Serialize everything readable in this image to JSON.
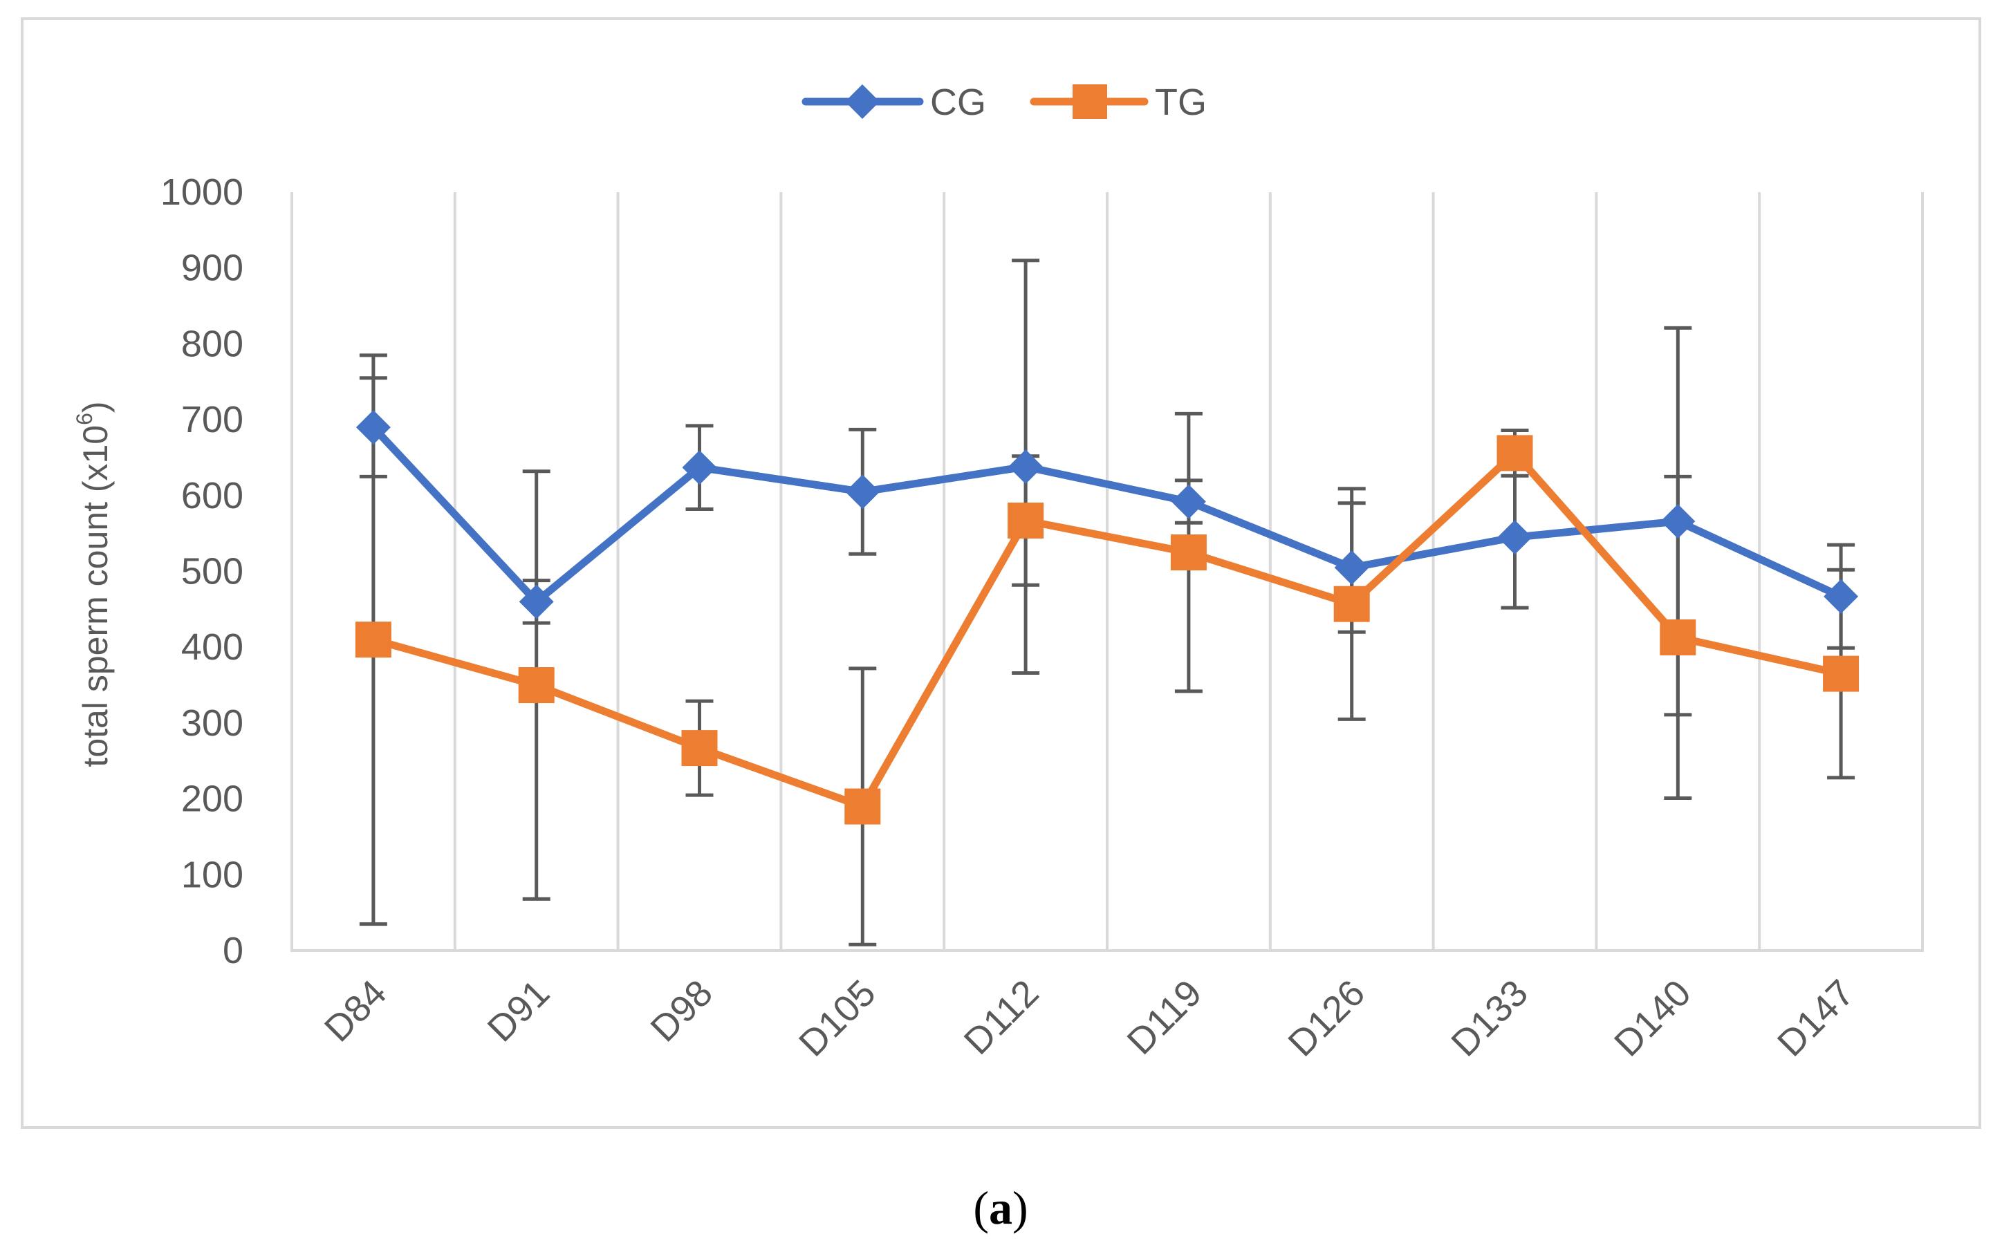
{
  "chart_data": {
    "type": "line",
    "title": "",
    "xlabel": "",
    "ylabel": "total sperm count (x10",
    "ylabel_superscript": "6",
    "ylabel_suffix": ")",
    "categories": [
      "D84",
      "D91",
      "D98",
      "D105",
      "D112",
      "D119",
      "D126",
      "D133",
      "D140",
      "D147"
    ],
    "ylim": [
      0,
      1000
    ],
    "yticks": [
      "0",
      "100",
      "200",
      "300",
      "400",
      "500",
      "600",
      "700",
      "800",
      "900",
      "1000"
    ],
    "ytick_values": [
      0,
      100,
      200,
      300,
      400,
      500,
      600,
      700,
      800,
      900,
      1000
    ],
    "grid": "vertical",
    "legend_position": "top-center",
    "series": [
      {
        "name": "CG",
        "color": "#4472C4",
        "marker": "diamond",
        "values": [
          690,
          460,
          637,
          605,
          638,
          592,
          505,
          545,
          566,
          467
        ],
        "errors": [
          65,
          28,
          55,
          82,
          272,
          28,
          85,
          93,
          255,
          68
        ]
      },
      {
        "name": "TG",
        "color": "#ED7D31",
        "marker": "square",
        "values": [
          410,
          350,
          267,
          190,
          567,
          525,
          457,
          656,
          413,
          365
        ],
        "errors": [
          375,
          282,
          62,
          182,
          85,
          183,
          152,
          30,
          212,
          137
        ]
      }
    ],
    "error_bar_color": "#595959"
  },
  "caption": {
    "open": "(",
    "label": "a",
    "close": ")"
  }
}
